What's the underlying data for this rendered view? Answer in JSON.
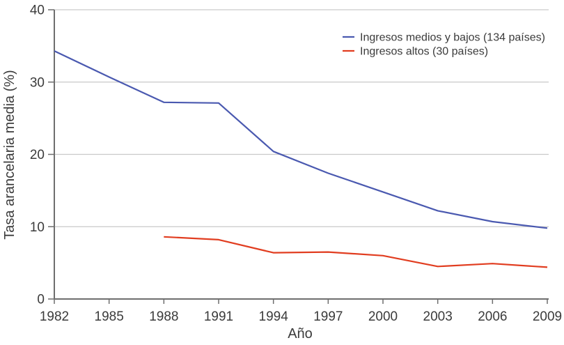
{
  "figure": {
    "background": "#ffffff",
    "text_color": "#3b3b3b",
    "axis_color": "#6e6e6e",
    "grid_color": "#c9c9c9"
  },
  "chart_data": {
    "type": "line",
    "title": "",
    "xlabel": "Año",
    "ylabel": "Tasa arancelaria media (%)",
    "xlim": [
      1982,
      2009
    ],
    "ylim": [
      0,
      40
    ],
    "x_ticks": [
      1982,
      1985,
      1988,
      1991,
      1994,
      1997,
      2000,
      2003,
      2006,
      2009
    ],
    "y_ticks": [
      0,
      10,
      20,
      30,
      40
    ],
    "grid": "horizontal-gridlines-at-10-20-30-40",
    "legend_position": "top-right",
    "series": [
      {
        "name": "Ingresos medios y bajos (134 países)",
        "color": "#4a59b0",
        "x": [
          1982,
          1985,
          1988,
          1991,
          1994,
          1997,
          2000,
          2003,
          2006,
          2009
        ],
        "values": [
          34.3,
          30.7,
          27.2,
          27.1,
          20.4,
          17.4,
          14.8,
          12.2,
          10.7,
          9.8
        ]
      },
      {
        "name": "Ingresos altos (30 países)",
        "color": "#e13d20",
        "x": [
          1988,
          1991,
          1994,
          1997,
          2000,
          2003,
          2006,
          2009
        ],
        "values": [
          8.6,
          8.2,
          6.4,
          6.5,
          6.0,
          4.5,
          4.9,
          4.4
        ]
      }
    ]
  }
}
